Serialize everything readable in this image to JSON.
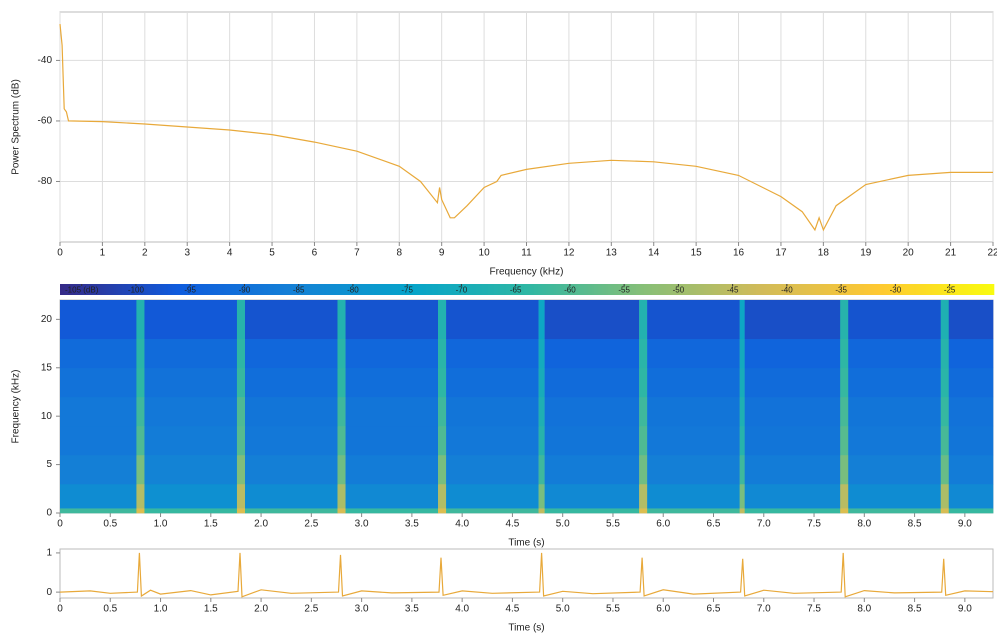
{
  "chart_data": [
    {
      "type": "line",
      "xlabel": "Frequency (kHz)",
      "ylabel": "Power Spectrum (dB)",
      "color": "#e8a93a",
      "grid": true,
      "xlim": [
        0,
        22
      ],
      "ylim": [
        -100,
        -24
      ],
      "xticks": [
        0,
        1,
        2,
        3,
        4,
        5,
        6,
        7,
        8,
        9,
        10,
        11,
        12,
        13,
        14,
        15,
        16,
        17,
        18,
        19,
        20,
        21,
        22
      ],
      "yticks": [
        -80,
        -60,
        -40
      ],
      "x": [
        0,
        0.05,
        0.1,
        0.15,
        0.2,
        1,
        2,
        3,
        4,
        5,
        6,
        7,
        8,
        8.5,
        8.9,
        8.95,
        9.0,
        9.2,
        9.3,
        9.6,
        10,
        10.3,
        10.4,
        11,
        12,
        13,
        14,
        15,
        16,
        17,
        17.5,
        17.8,
        17.9,
        18,
        18.3,
        19,
        20,
        21,
        22
      ],
      "values": [
        -28,
        -35,
        -56,
        -57,
        -60,
        -60.2,
        -61,
        -62,
        -63,
        -64.5,
        -67,
        -70,
        -75,
        -80,
        -87,
        -82,
        -86,
        -92,
        -92,
        -88,
        -82,
        -80,
        -78,
        -76,
        -74,
        -73,
        -73.5,
        -75,
        -78,
        -85,
        -90,
        -96,
        -92,
        -96,
        -88,
        -81,
        -78,
        -77,
        -77
      ]
    },
    {
      "type": "heatmap",
      "xlabel": "Time (s)",
      "ylabel": "Frequency (kHz)",
      "xlim": [
        0,
        9.28
      ],
      "ylim": [
        0,
        22
      ],
      "xticks": [
        0,
        0.5,
        {
          "value": 1,
          "label": "1.0"
        },
        1.5,
        {
          "value": 2,
          "label": "2.0"
        },
        2.5,
        {
          "value": 3,
          "label": "3.0"
        },
        3.5,
        {
          "value": 4,
          "label": "4.0"
        },
        4.5,
        {
          "value": 5,
          "label": "5.0"
        },
        5.5,
        {
          "value": 6,
          "label": "6.0"
        },
        6.5,
        {
          "value": 7,
          "label": "7.0"
        },
        7.5,
        {
          "value": 8,
          "label": "8.0"
        },
        8.5,
        {
          "value": 9,
          "label": "9.0"
        }
      ],
      "yticks": [
        0,
        5,
        10,
        15,
        20
      ],
      "xbins": [
        0,
        0.76,
        0.84,
        1.76,
        1.84,
        2.76,
        2.84,
        3.76,
        3.84,
        4.76,
        4.82,
        5.76,
        5.84,
        6.76,
        6.81,
        7.76,
        7.84,
        8.76,
        8.84,
        9.28
      ],
      "ybins": [
        0,
        0.5,
        3,
        6,
        9,
        12,
        15,
        18,
        22
      ],
      "z": [
        [
          -62,
          -40,
          -63,
          -40,
          -62,
          -41,
          -63,
          -40,
          -62,
          -45,
          -63,
          -40,
          -62,
          -45,
          -63,
          -40,
          -62,
          -41,
          -63
        ],
        [
          -82,
          -47,
          -81,
          -46,
          -82,
          -48,
          -83,
          -47,
          -82,
          -55,
          -83,
          -47,
          -82,
          -55,
          -83,
          -46,
          -82,
          -48,
          -83
        ],
        [
          -86,
          -55,
          -85,
          -54,
          -86,
          -56,
          -87,
          -55,
          -86,
          -62,
          -87,
          -56,
          -86,
          -62,
          -87,
          -55,
          -86,
          -57,
          -87
        ],
        [
          -88,
          -60,
          -87,
          -59,
          -88,
          -60,
          -89,
          -60,
          -88,
          -66,
          -89,
          -60,
          -88,
          -66,
          -89,
          -59,
          -88,
          -61,
          -89
        ],
        [
          -88,
          -62,
          -88,
          -60,
          -89,
          -62,
          -89,
          -62,
          -89,
          -68,
          -90,
          -62,
          -89,
          -68,
          -90,
          -61,
          -89,
          -63,
          -90
        ],
        [
          -90,
          -64,
          -90,
          -63,
          -91,
          -64,
          -91,
          -64,
          -91,
          -70,
          -92,
          -64,
          -91,
          -70,
          -92,
          -63,
          -91,
          -65,
          -92
        ],
        [
          -92,
          -65,
          -92,
          -64,
          -93,
          -65,
          -93,
          -65,
          -93,
          -71,
          -94,
          -65,
          -93,
          -71,
          -94,
          -64,
          -93,
          -66,
          -94
        ],
        [
          -97,
          -67,
          -97,
          -66,
          -98,
          -67,
          -98,
          -67,
          -98,
          -73,
          -99,
          -67,
          -98,
          -73,
          -99,
          -66,
          -98,
          -68,
          -99
        ]
      ],
      "zlim": [
        -107,
        -21
      ],
      "colormap": [
        "#352a87",
        "#0f5cdd",
        "#1481d6",
        "#06a4ca",
        "#2eb7a4",
        "#87bf77",
        "#d1bb59",
        "#fec832",
        "#f9fb0e"
      ],
      "colorbar_ticks": [
        {
          "value": -105,
          "label": "-105 (dB)"
        },
        -100,
        -95,
        -90,
        -85,
        -80,
        -75,
        -70,
        -65,
        -60,
        -55,
        -50,
        -45,
        -40,
        -35,
        -30,
        -25
      ]
    },
    {
      "type": "line",
      "xlabel": "Time (s)",
      "color": "#e8a93a",
      "grid": false,
      "xlim": [
        0,
        9.28
      ],
      "ylim": [
        -0.15,
        1.1
      ],
      "xticks": [
        0,
        0.5,
        {
          "value": 1,
          "label": "1.0"
        },
        1.5,
        {
          "value": 2,
          "label": "2.0"
        },
        2.5,
        {
          "value": 3,
          "label": "3.0"
        },
        3.5,
        {
          "value": 4,
          "label": "4.0"
        },
        4.5,
        {
          "value": 5,
          "label": "5.0"
        },
        5.5,
        {
          "value": 6,
          "label": "6.0"
        },
        6.5,
        {
          "value": 7,
          "label": "7.0"
        },
        7.5,
        {
          "value": 8,
          "label": "8.0"
        },
        8.5,
        {
          "value": 9,
          "label": "9.0"
        }
      ],
      "yticks": [
        0,
        1
      ],
      "x": [
        0,
        0.3,
        0.5,
        0.77,
        0.79,
        0.81,
        0.9,
        1.0,
        1.3,
        1.5,
        1.77,
        1.79,
        1.81,
        2.0,
        2.3,
        2.77,
        2.79,
        2.81,
        3.0,
        3.3,
        3.77,
        3.79,
        3.81,
        4.0,
        4.3,
        4.77,
        4.79,
        4.81,
        5.0,
        5.3,
        5.77,
        5.79,
        5.81,
        6.0,
        6.3,
        6.77,
        6.79,
        6.81,
        7.0,
        7.3,
        7.77,
        7.79,
        7.81,
        8.0,
        8.3,
        8.77,
        8.79,
        8.81,
        9.0,
        9.28
      ],
      "values": [
        0,
        0.03,
        -0.03,
        0,
        1,
        -0.1,
        0.05,
        -0.05,
        0.04,
        -0.07,
        0.02,
        1,
        -0.12,
        0.06,
        -0.03,
        0,
        0.95,
        -0.1,
        0.03,
        -0.02,
        0,
        0.88,
        -0.08,
        0.03,
        -0.03,
        0,
        1,
        -0.1,
        0.02,
        -0.04,
        0,
        0.88,
        -0.1,
        0.06,
        -0.05,
        0,
        0.85,
        -0.1,
        0.05,
        -0.03,
        0,
        1,
        -0.12,
        0.04,
        -0.02,
        0,
        0.85,
        -0.08,
        0.03,
        0.01
      ]
    }
  ]
}
